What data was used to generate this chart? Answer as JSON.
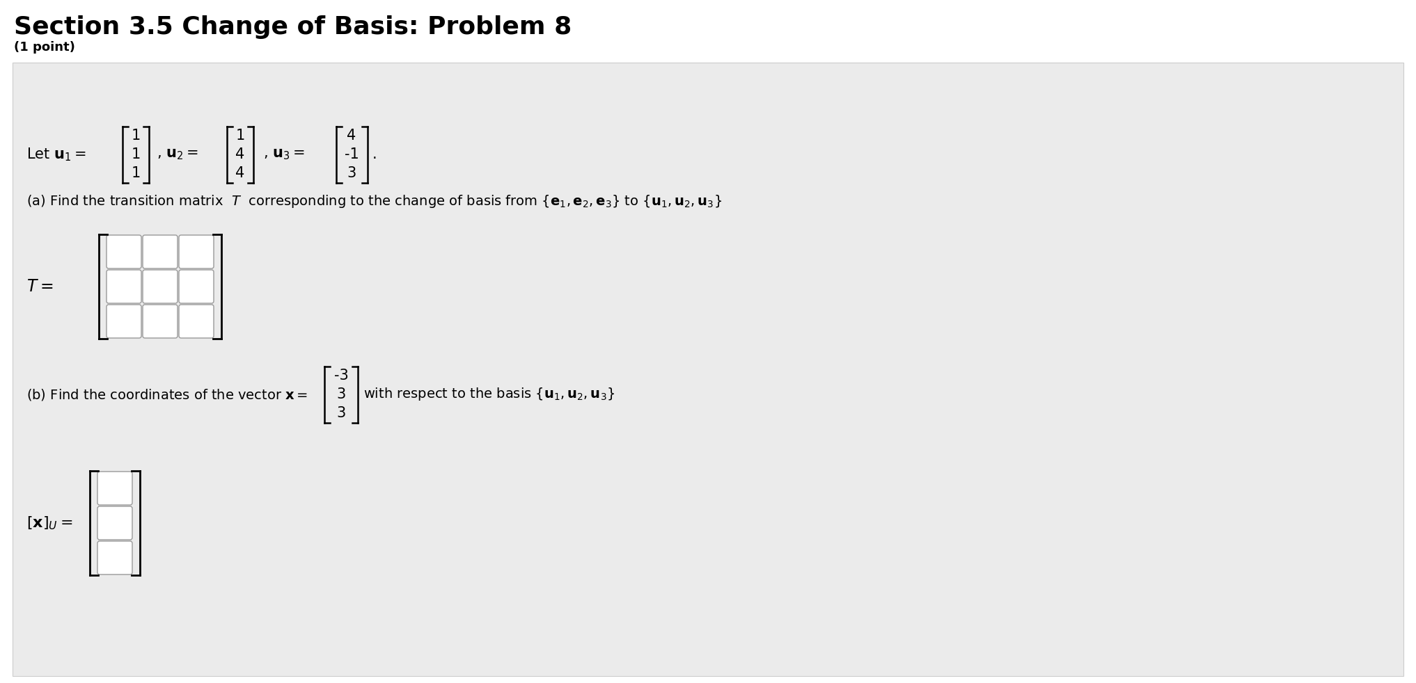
{
  "title": "Section 3.5 Change of Basis: Problem 8",
  "subtitle": "(1 point)",
  "bg_color": "#ffffff",
  "panel_color": "#ebebeb",
  "panel_border": "#cccccc",
  "title_fontsize": 26,
  "subtitle_fontsize": 13,
  "body_fontsize": 14,
  "math_fontsize": 15,
  "u1": [
    "1",
    "1",
    "1"
  ],
  "u2": [
    "1",
    "4",
    "4"
  ],
  "u3": [
    "4",
    "-1",
    "3"
  ],
  "x_vec": [
    "-3",
    "3",
    "3"
  ],
  "part_a_label": "(a) Find the transition matrix  $T$  corresponding to the change of basis from $\\{\\mathbf{e}_1, \\mathbf{e}_2, \\mathbf{e}_3\\}$ to $\\{\\mathbf{u}_1, \\mathbf{u}_2, \\mathbf{u}_3\\}$",
  "part_b_label": "(b) Find the coordinates of the vector $\\mathbf{x} =$",
  "part_b_basis": "with respect to the basis $\\{\\mathbf{u}_1, \\mathbf{u}_2, \\mathbf{u}_3\\}$",
  "T_label": "$T =$",
  "xu_label": "$[\\mathbf{x}]_U =$"
}
